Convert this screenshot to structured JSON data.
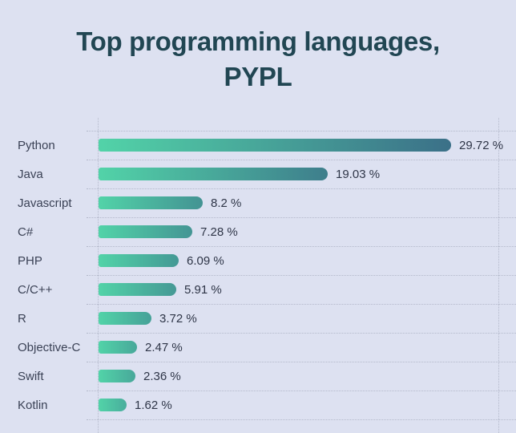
{
  "title": {
    "line1": "Top programming languages,",
    "line2": "PYPL"
  },
  "chart_data": {
    "type": "bar",
    "orientation": "horizontal",
    "title": "Top programming languages, PYPL",
    "categories": [
      "Python",
      "Java",
      "Javascript",
      "C#",
      "PHP",
      "C/C++",
      "R",
      "Objective-C",
      "Swift",
      "Kotlin"
    ],
    "values": [
      29.72,
      19.03,
      8.2,
      7.28,
      6.09,
      5.91,
      3.72,
      2.47,
      2.36,
      1.62
    ],
    "value_labels": [
      "29.72 %",
      "19.03 %",
      "8.2 %",
      "7.28 %",
      "6.09 %",
      "5.91 %",
      "3.72 %",
      "2.47 %",
      "2.36 %",
      "1.62 %"
    ],
    "unit": "%",
    "xlim": [
      0,
      30
    ],
    "grid": "dotted horizontal lines per row, vertical lines at bar baseline and right edge",
    "legend": false
  },
  "colors": {
    "background": "#dde1f1",
    "title_text": "#214653",
    "category_text": "#3a4155",
    "value_text": "#2e3547",
    "grid_dots": "#b4b9cb",
    "bar_gradient_start": "#52d3a8",
    "bar_gradient_end": "#3b7088"
  }
}
